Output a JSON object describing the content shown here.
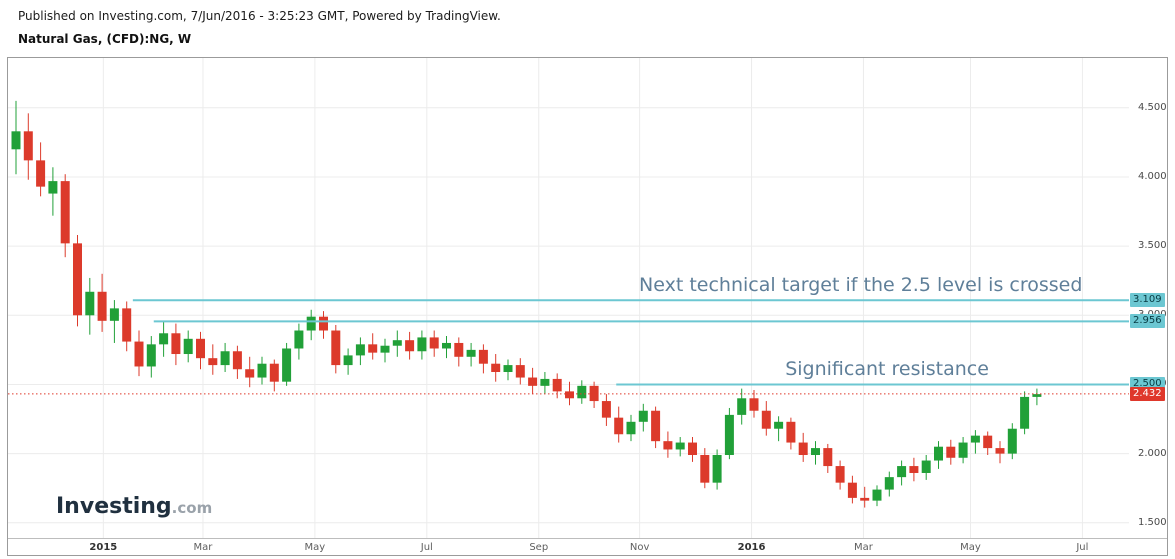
{
  "header": {
    "published_line": "Published on Investing.com, 7/Jun/2016 - 3:25:23 GMT, Powered by TradingView.",
    "instrument_title": "Natural Gas, (CFD):NG, W"
  },
  "watermark": {
    "brand": "Investing",
    "suffix": ".com"
  },
  "chart_data": {
    "type": "candlestick",
    "symbol": "Natural Gas, (CFD):NG",
    "timeframe": "W",
    "last_price": 2.432,
    "price_range": [
      1.39,
      4.86
    ],
    "price_axis": {
      "ticks": [
        4.5,
        4.0,
        3.5,
        3.0,
        2.5,
        2.0,
        1.5
      ],
      "labels": [
        "4.500",
        "4.000",
        "3.500",
        "3.000",
        "2.500",
        "2.000",
        "1.500"
      ]
    },
    "time_axis": [
      {
        "label": "2015",
        "index": 7.1,
        "major": true
      },
      {
        "label": "Mar",
        "index": 15.2,
        "major": false
      },
      {
        "label": "May",
        "index": 24.3,
        "major": false
      },
      {
        "label": "Jul",
        "index": 33.4,
        "major": false
      },
      {
        "label": "Sep",
        "index": 42.5,
        "major": false
      },
      {
        "label": "Nov",
        "index": 50.7,
        "major": false
      },
      {
        "label": "2016",
        "index": 59.8,
        "major": true
      },
      {
        "label": "Mar",
        "index": 68.9,
        "major": false
      },
      {
        "label": "May",
        "index": 77.6,
        "major": false
      },
      {
        "label": "Jul",
        "index": 86.7,
        "major": false
      }
    ],
    "levels": [
      {
        "label": "3.109",
        "price": 3.109,
        "start_index": 9.5,
        "style": "solid",
        "role": "target",
        "full_width": false
      },
      {
        "label": "2.956",
        "price": 2.956,
        "start_index": 11.2,
        "style": "solid",
        "role": "target",
        "full_width": false
      },
      {
        "label": "2.500",
        "price": 2.5,
        "start_index": 48.8,
        "style": "solid",
        "role": "resistance",
        "full_width": false
      },
      {
        "label": "2.432",
        "price": 2.432,
        "start_index": 0,
        "style": "dotted",
        "role": "last-price",
        "full_width": true
      }
    ],
    "annotations": [
      {
        "text": "Next technical target if the 2.5 level is crossed",
        "price": 3.109,
        "align_right_index": 86.7
      },
      {
        "text": "Significant resistance",
        "price": 2.5,
        "align_right_index": 79.1
      }
    ],
    "candle_fields": [
      "open",
      "high",
      "low",
      "close"
    ],
    "candles": [
      [
        4.2,
        4.55,
        4.02,
        4.33
      ],
      [
        4.33,
        4.46,
        3.98,
        4.12
      ],
      [
        4.12,
        4.25,
        3.86,
        3.93
      ],
      [
        3.88,
        4.07,
        3.72,
        3.97
      ],
      [
        3.97,
        4.02,
        3.42,
        3.52
      ],
      [
        3.52,
        3.58,
        2.92,
        3.0
      ],
      [
        3.0,
        3.27,
        2.86,
        3.17
      ],
      [
        3.17,
        3.3,
        2.88,
        2.96
      ],
      [
        2.96,
        3.11,
        2.8,
        3.05
      ],
      [
        3.05,
        3.1,
        2.74,
        2.81
      ],
      [
        2.81,
        2.89,
        2.56,
        2.63
      ],
      [
        2.63,
        2.85,
        2.55,
        2.79
      ],
      [
        2.79,
        2.96,
        2.7,
        2.87
      ],
      [
        2.87,
        2.94,
        2.64,
        2.72
      ],
      [
        2.72,
        2.89,
        2.66,
        2.83
      ],
      [
        2.83,
        2.88,
        2.61,
        2.69
      ],
      [
        2.69,
        2.79,
        2.57,
        2.64
      ],
      [
        2.64,
        2.8,
        2.59,
        2.74
      ],
      [
        2.74,
        2.78,
        2.54,
        2.61
      ],
      [
        2.61,
        2.7,
        2.48,
        2.55
      ],
      [
        2.55,
        2.7,
        2.5,
        2.65
      ],
      [
        2.65,
        2.68,
        2.45,
        2.52
      ],
      [
        2.52,
        2.8,
        2.49,
        2.76
      ],
      [
        2.76,
        2.94,
        2.68,
        2.89
      ],
      [
        2.89,
        3.04,
        2.82,
        2.99
      ],
      [
        2.99,
        3.03,
        2.83,
        2.89
      ],
      [
        2.89,
        2.93,
        2.58,
        2.64
      ],
      [
        2.64,
        2.76,
        2.57,
        2.71
      ],
      [
        2.71,
        2.84,
        2.64,
        2.79
      ],
      [
        2.79,
        2.87,
        2.68,
        2.73
      ],
      [
        2.73,
        2.83,
        2.66,
        2.78
      ],
      [
        2.78,
        2.89,
        2.7,
        2.82
      ],
      [
        2.82,
        2.88,
        2.68,
        2.74
      ],
      [
        2.74,
        2.89,
        2.68,
        2.84
      ],
      [
        2.84,
        2.89,
        2.7,
        2.76
      ],
      [
        2.76,
        2.85,
        2.69,
        2.8
      ],
      [
        2.8,
        2.84,
        2.63,
        2.7
      ],
      [
        2.7,
        2.8,
        2.63,
        2.75
      ],
      [
        2.75,
        2.79,
        2.58,
        2.65
      ],
      [
        2.65,
        2.72,
        2.52,
        2.59
      ],
      [
        2.59,
        2.68,
        2.53,
        2.64
      ],
      [
        2.64,
        2.69,
        2.5,
        2.55
      ],
      [
        2.55,
        2.62,
        2.43,
        2.49
      ],
      [
        2.49,
        2.59,
        2.43,
        2.54
      ],
      [
        2.54,
        2.58,
        2.4,
        2.45
      ],
      [
        2.45,
        2.52,
        2.35,
        2.4
      ],
      [
        2.4,
        2.53,
        2.36,
        2.49
      ],
      [
        2.49,
        2.52,
        2.33,
        2.38
      ],
      [
        2.38,
        2.43,
        2.2,
        2.26
      ],
      [
        2.26,
        2.34,
        2.08,
        2.14
      ],
      [
        2.14,
        2.28,
        2.09,
        2.23
      ],
      [
        2.23,
        2.36,
        2.16,
        2.31
      ],
      [
        2.31,
        2.34,
        2.04,
        2.09
      ],
      [
        2.09,
        2.16,
        1.97,
        2.03
      ],
      [
        2.03,
        2.12,
        1.98,
        2.08
      ],
      [
        2.08,
        2.12,
        1.94,
        1.99
      ],
      [
        1.99,
        2.04,
        1.75,
        1.79
      ],
      [
        1.79,
        2.03,
        1.74,
        1.99
      ],
      [
        1.99,
        2.33,
        1.96,
        2.28
      ],
      [
        2.28,
        2.47,
        2.21,
        2.4
      ],
      [
        2.4,
        2.46,
        2.26,
        2.31
      ],
      [
        2.31,
        2.38,
        2.13,
        2.18
      ],
      [
        2.18,
        2.27,
        2.09,
        2.23
      ],
      [
        2.23,
        2.26,
        2.03,
        2.08
      ],
      [
        2.08,
        2.15,
        1.94,
        1.99
      ],
      [
        1.99,
        2.09,
        1.92,
        2.04
      ],
      [
        2.04,
        2.07,
        1.86,
        1.91
      ],
      [
        1.91,
        1.95,
        1.74,
        1.79
      ],
      [
        1.79,
        1.84,
        1.64,
        1.68
      ],
      [
        1.68,
        1.76,
        1.61,
        1.66
      ],
      [
        1.66,
        1.77,
        1.62,
        1.74
      ],
      [
        1.74,
        1.87,
        1.69,
        1.83
      ],
      [
        1.83,
        1.95,
        1.77,
        1.91
      ],
      [
        1.91,
        1.97,
        1.8,
        1.86
      ],
      [
        1.86,
        1.99,
        1.81,
        1.95
      ],
      [
        1.95,
        2.09,
        1.89,
        2.05
      ],
      [
        2.05,
        2.1,
        1.92,
        1.97
      ],
      [
        1.97,
        2.12,
        1.93,
        2.08
      ],
      [
        2.08,
        2.17,
        2.0,
        2.13
      ],
      [
        2.13,
        2.16,
        1.99,
        2.04
      ],
      [
        2.04,
        2.09,
        1.93,
        2.0
      ],
      [
        2.0,
        2.22,
        1.96,
        2.18
      ],
      [
        2.18,
        2.45,
        2.14,
        2.41
      ],
      [
        2.41,
        2.47,
        2.35,
        2.43
      ]
    ],
    "colors": {
      "up": "#21a038",
      "down": "#dc3a2b",
      "level_line": "#6cc7d2",
      "level_badge_text": "#073b43",
      "last_price": "#df382b",
      "annotation": "#5f7f99",
      "grid": "#ececec",
      "axis_text": "#4a4a4a"
    }
  }
}
